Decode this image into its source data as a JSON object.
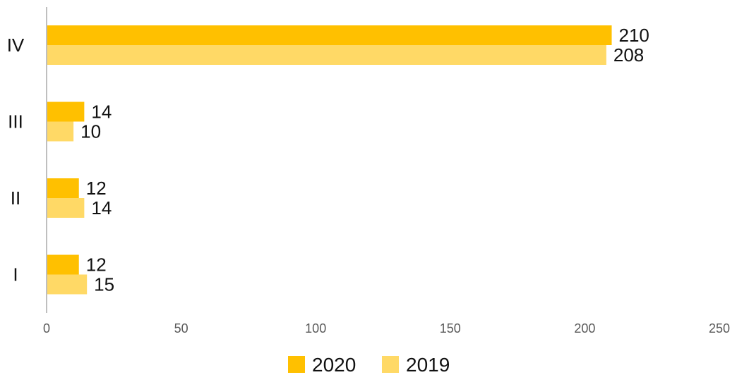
{
  "chart_data": {
    "type": "bar",
    "orientation": "horizontal",
    "categories": [
      "IV",
      "III",
      "II",
      "I"
    ],
    "series": [
      {
        "name": "2020",
        "values": [
          210,
          14,
          12,
          12
        ],
        "color": "#FFC000"
      },
      {
        "name": "2019",
        "values": [
          208,
          10,
          14,
          15
        ],
        "color": "#FFD966"
      }
    ],
    "xaxis": {
      "range": [
        0,
        250
      ],
      "ticks": [
        0,
        50,
        100,
        150,
        200,
        250
      ],
      "tick_labels": [
        "0",
        "50",
        "100",
        "150",
        "200",
        "250"
      ]
    },
    "grid": false,
    "legend_position": "bottom",
    "data_labels": true
  }
}
